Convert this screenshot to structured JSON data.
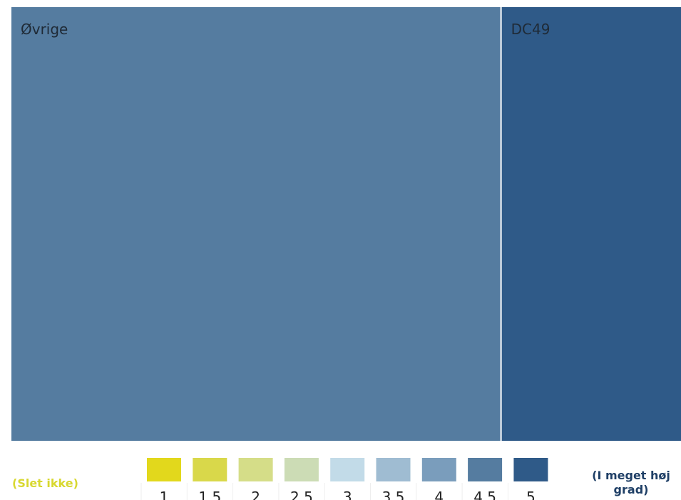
{
  "chart_data": {
    "type": "treemap",
    "tiles": [
      {
        "label": "Øvrige",
        "value": 690,
        "color": "#557ca0",
        "score": 4.5
      },
      {
        "label": "DC49",
        "value": 253,
        "color": "#2f5a88",
        "score": 5
      }
    ],
    "legend": {
      "low_label": "(Slet ikke)",
      "high_label": "(I meget høj grad)",
      "low_color": "#d8d830",
      "high_color": "#1f3f66",
      "steps": [
        {
          "label": "1",
          "color": "#e2d81c"
        },
        {
          "label": "1.5",
          "color": "#d9d84a"
        },
        {
          "label": "2",
          "color": "#d5dd88"
        },
        {
          "label": "2.5",
          "color": "#ccdcb5"
        },
        {
          "label": "3",
          "color": "#c2dbe8"
        },
        {
          "label": "3.5",
          "color": "#9fbcd2"
        },
        {
          "label": "4",
          "color": "#7a9dbc"
        },
        {
          "label": "4.5",
          "color": "#557ca0"
        },
        {
          "label": "5",
          "color": "#2f5a88"
        }
      ]
    }
  }
}
